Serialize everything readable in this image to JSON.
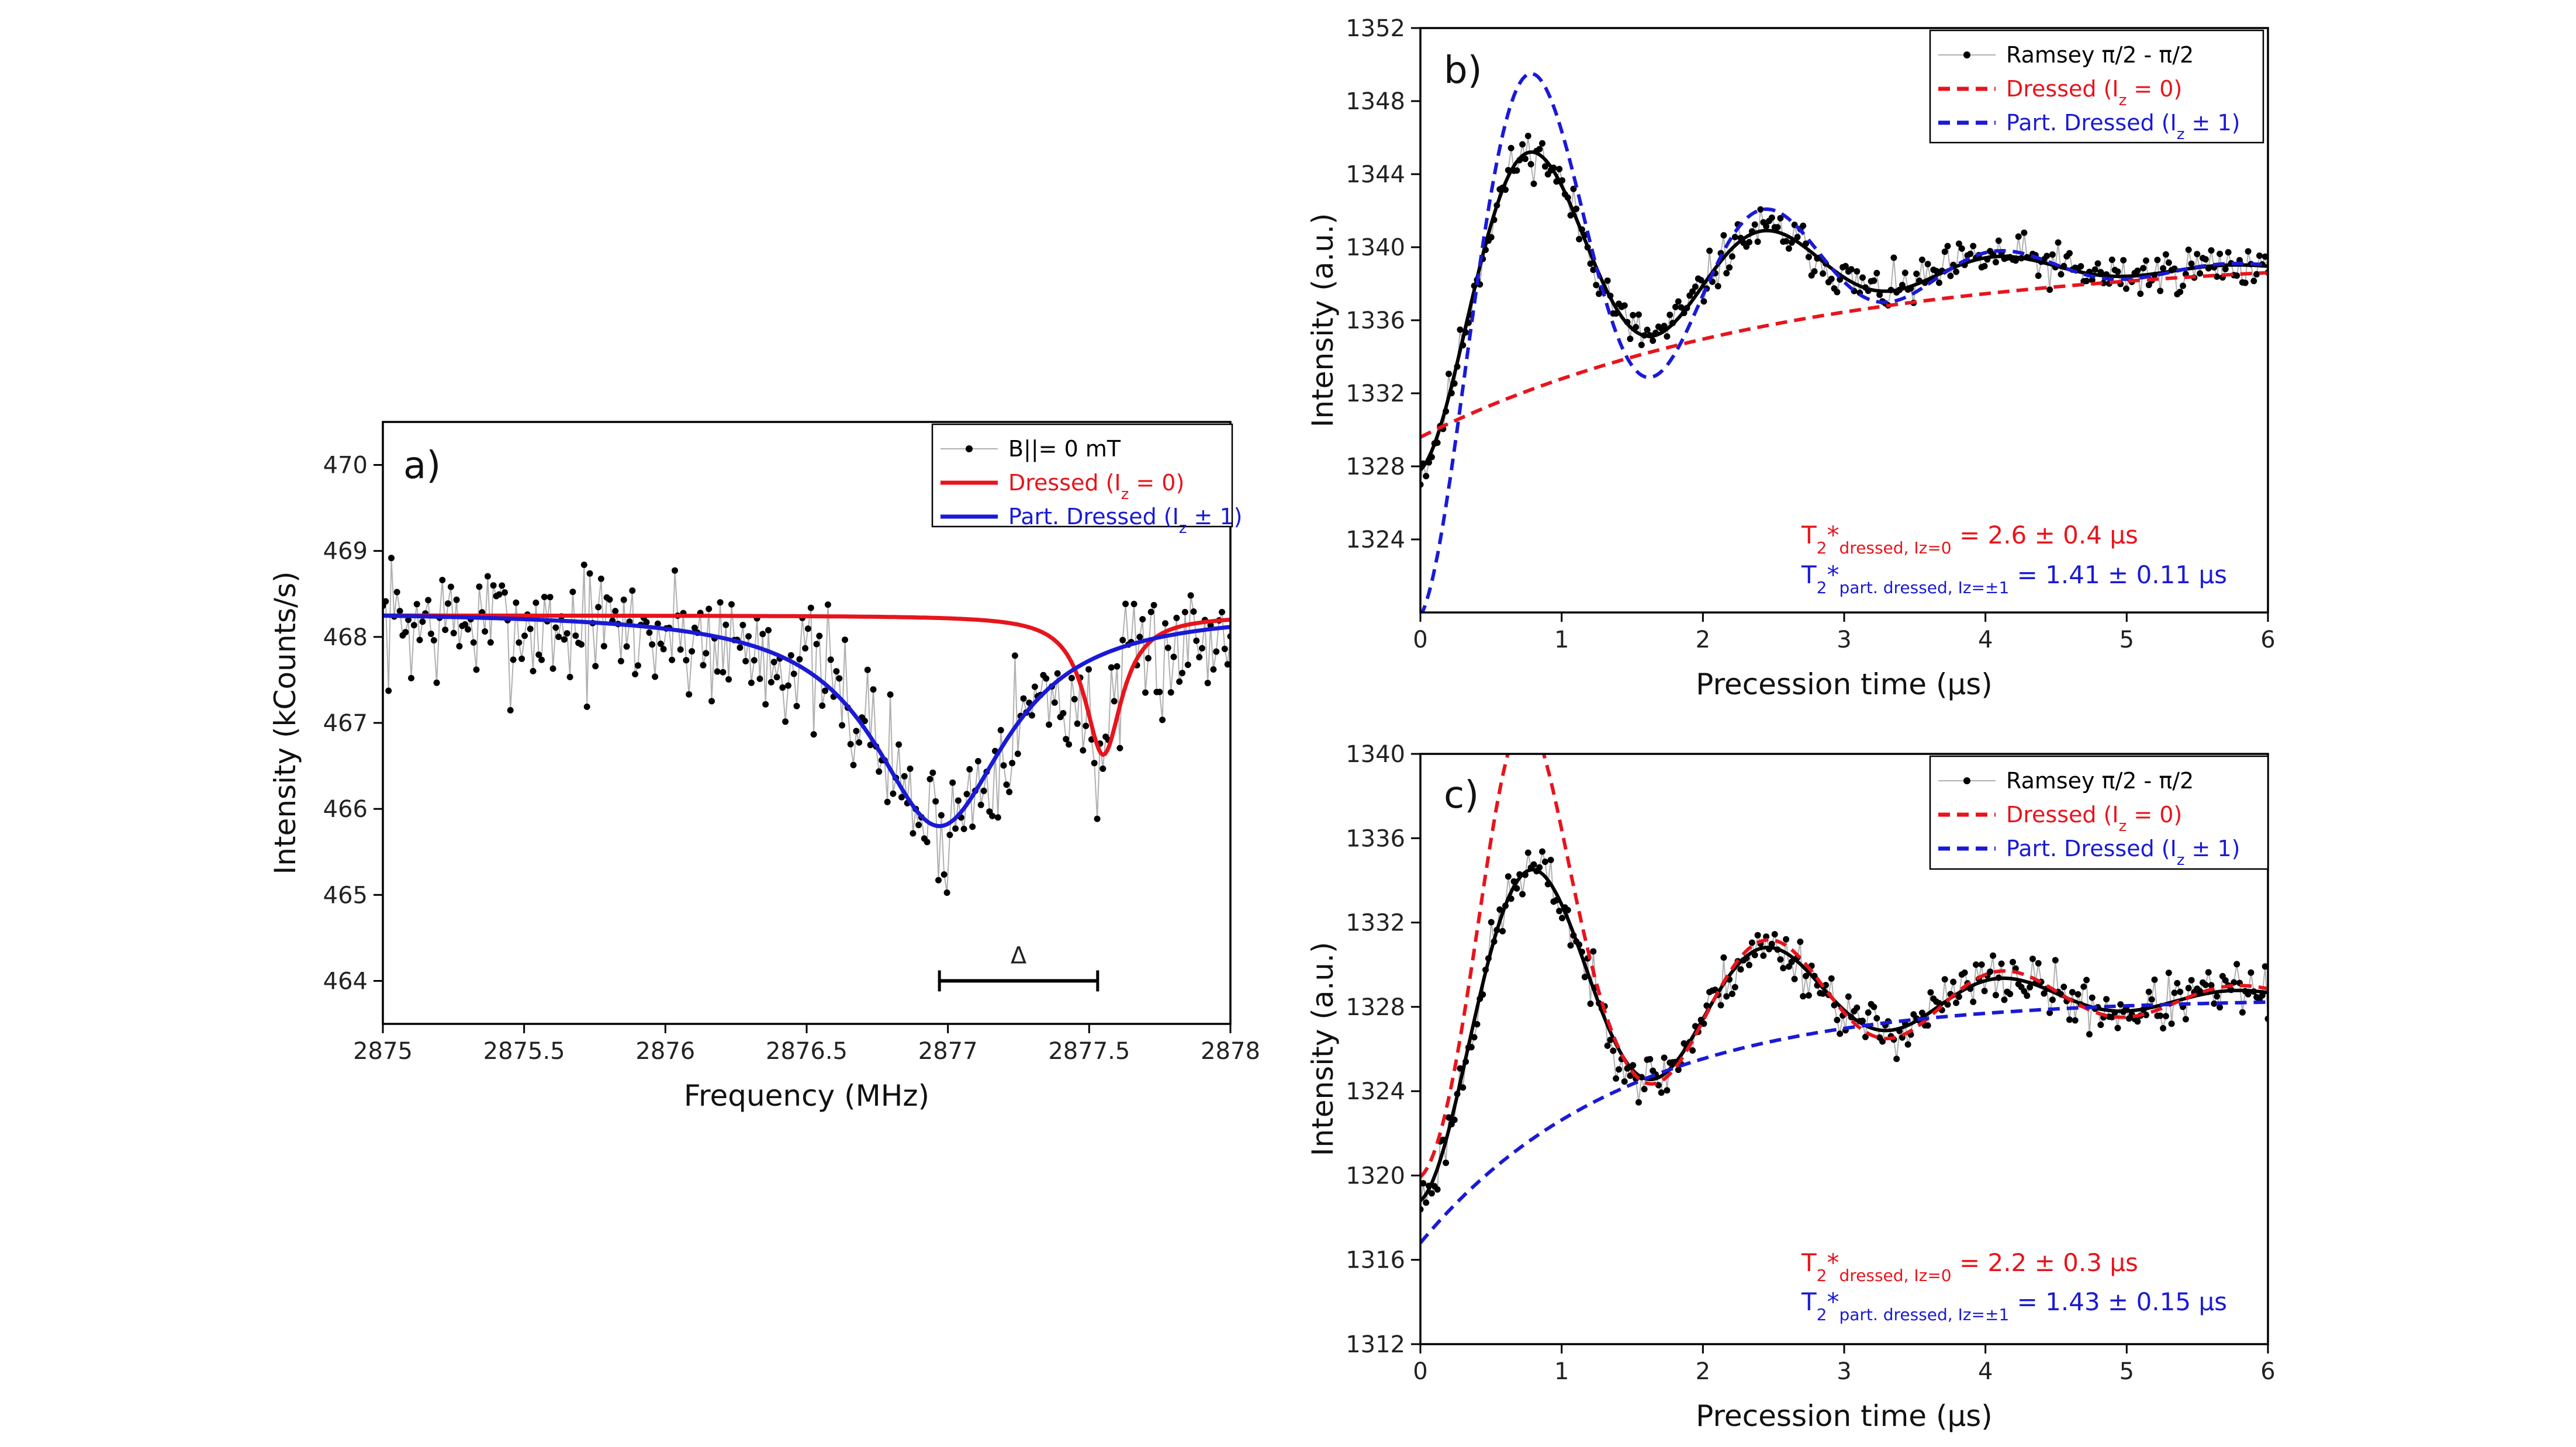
{
  "chart_data": [
    {
      "id": "a",
      "type": "line",
      "panel_label": "a)",
      "xlabel": "Frequency (MHz)",
      "ylabel": "Intensity (kCounts/s)",
      "xlim": [
        2875,
        2878
      ],
      "ylim": [
        463.5,
        470.5
      ],
      "xticks": [
        2875,
        2875.5,
        2876,
        2876.5,
        2877,
        2877.5,
        2878
      ],
      "xtick_labels": [
        "2875",
        "2875.5",
        "2876",
        "2876.5",
        "2877",
        "2877.5",
        "2878"
      ],
      "yticks": [
        464,
        465,
        466,
        467,
        468,
        469,
        470
      ],
      "ytick_labels": [
        "464",
        "465",
        "466",
        "467",
        "468",
        "469",
        "470"
      ],
      "legend": {
        "placement": "top-right",
        "entries": [
          {
            "label": "B||= 0 mT",
            "style": "points",
            "color": "#000000"
          },
          {
            "label": "Dressed (Iz = 0)",
            "html": "Dressed (I<tspan baseline-shift='sub' font-size='26'>z</tspan> = 0)",
            "style": "solid",
            "color": "#e8141c"
          },
          {
            "label": "Part. Dressed (Iz ± 1)",
            "html": "Part. Dressed (I<tspan baseline-shift='sub' font-size='26'>z</tspan> ± 1)",
            "style": "solid",
            "color": "#1a1ad6"
          }
        ]
      },
      "annotation_delta": {
        "label": "Δ",
        "x_from": 2876.97,
        "x_to": 2877.53,
        "y": 464.0
      },
      "series": [
        {
          "name": "B||= 0 mT",
          "kind": "noisy_points",
          "color": "#000000",
          "line_color": "#b0b0b0",
          "x_range": [
            2875,
            2878
          ],
          "n": 300,
          "noise": 0.55,
          "seed": 7,
          "model": {
            "baseline": 468.2,
            "dips": [
              {
                "center": 2876.97,
                "depth": 2.4,
                "width": 0.26
              },
              {
                "center": 2877.54,
                "depth": 1.1,
                "width": 0.07
              }
            ]
          }
        },
        {
          "name": "Dressed (Iz = 0)",
          "kind": "curve",
          "color": "#e8141c",
          "width": 7,
          "x_range": [
            2875,
            2878
          ],
          "n": 400,
          "model": {
            "baseline": 468.25,
            "dips": [
              {
                "center": 2877.55,
                "depth": 1.62,
                "width": 0.08
              }
            ]
          }
        },
        {
          "name": "Part. Dressed (Iz ± 1)",
          "kind": "curve",
          "color": "#1a1ad6",
          "width": 7,
          "x_range": [
            2875,
            2878
          ],
          "n": 400,
          "model": {
            "baseline": 468.3,
            "dips": [
              {
                "center": 2876.97,
                "depth": 2.5,
                "width": 0.29
              }
            ]
          }
        }
      ]
    },
    {
      "id": "b",
      "type": "line",
      "panel_label": "b)",
      "xlabel": "Precession time (μs)",
      "ylabel": "Intensity (a.u.)",
      "xlim": [
        0,
        6
      ],
      "ylim": [
        1320,
        1352
      ],
      "xticks": [
        0,
        1,
        2,
        3,
        4,
        5,
        6
      ],
      "xtick_labels": [
        "0",
        "1",
        "2",
        "3",
        "4",
        "5",
        "6"
      ],
      "yticks": [
        1324,
        1328,
        1332,
        1336,
        1340,
        1344,
        1348,
        1352
      ],
      "ytick_labels": [
        "1324",
        "1328",
        "1332",
        "1336",
        "1340",
        "1344",
        "1348",
        "1352"
      ],
      "legend": {
        "placement": "top-right",
        "entries": [
          {
            "label": "Ramsey π/2 - π/2",
            "style": "points",
            "color": "#000000"
          },
          {
            "label": "Dressed (Iz = 0)",
            "html": "Dressed (I<tspan baseline-shift='sub' font-size='26'>z</tspan> = 0)",
            "style": "dashed",
            "color": "#e8141c"
          },
          {
            "label": "Part. Dressed (Iz ± 1)",
            "html": "Part. Dressed (I<tspan baseline-shift='sub' font-size='26'>z</tspan> ± 1)",
            "style": "dashed",
            "color": "#1a1ad6"
          }
        ]
      },
      "annotations": [
        {
          "label": "T2*dressed, Iz=0 = 2.6 ± 0.4 μs",
          "html": "T<tspan baseline-shift='sub' font-size='28'>2</tspan>*<tspan baseline-shift='sub' font-size='28'>dressed, Iz=0</tspan> = 2.6 ± 0.4 μs",
          "color": "#e8141c"
        },
        {
          "label": "T2*part. dressed, Iz=±1 = 1.41 ± 0.11 μs",
          "html": "T<tspan baseline-shift='sub' font-size='28'>2</tspan>*<tspan baseline-shift='sub' font-size='28'>part. dressed, Iz=±1</tspan> = 1.41 ± 0.11 μs",
          "color": "#1a1ad6"
        }
      ],
      "series": [
        {
          "name": "Ramsey π/2 - π/2",
          "kind": "noisy_points",
          "color": "#000000",
          "line_color": "#b0b0b0",
          "x_range": [
            0,
            6
          ],
          "n": 300,
          "noise": 0.9,
          "seed": 11,
          "model": {
            "offset": 1338.8,
            "amp": -11.0,
            "tau": 1.5,
            "freq": 0.6,
            "phase": 0,
            "exp_amp": 0,
            "exp_tau": 1
          }
        },
        {
          "name": "fit",
          "kind": "curve",
          "color": "#000000",
          "width": 6,
          "dash": "",
          "x_range": [
            0,
            6
          ],
          "n": 400,
          "model": {
            "offset": 1338.8,
            "amp": -11.0,
            "tau": 1.5,
            "freq": 0.6,
            "phase": 0,
            "exp_amp": 0,
            "exp_tau": 1
          }
        },
        {
          "name": "Part. Dressed (Iz ± 1)",
          "kind": "curve",
          "color": "#1a1ad6",
          "width": 6,
          "dash": "20,12",
          "x_range": [
            0,
            6
          ],
          "n": 400,
          "model": {
            "offset": 1338.8,
            "amp": -19.0,
            "tau": 1.41,
            "freq": 0.6,
            "phase": 0,
            "exp_amp": 0,
            "exp_tau": 1
          }
        },
        {
          "name": "Dressed (Iz = 0)",
          "kind": "curve",
          "color": "#e8141c",
          "width": 6,
          "dash": "20,12",
          "x_range": [
            0,
            6
          ],
          "n": 400,
          "model": {
            "offset": 1339.6,
            "amp": 0,
            "tau": 1,
            "freq": 0,
            "phase": 0,
            "exp_amp": -10.0,
            "exp_tau": 2.6
          }
        }
      ]
    },
    {
      "id": "c",
      "type": "line",
      "panel_label": "c)",
      "xlabel": "Precession time (μs)",
      "ylabel": "Intensity (a.u.)",
      "xlim": [
        0,
        6
      ],
      "ylim": [
        1312,
        1340
      ],
      "xticks": [
        0,
        1,
        2,
        3,
        4,
        5,
        6
      ],
      "xtick_labels": [
        "0",
        "1",
        "2",
        "3",
        "4",
        "5",
        "6"
      ],
      "yticks": [
        1312,
        1316,
        1320,
        1324,
        1328,
        1332,
        1336,
        1340
      ],
      "ytick_labels": [
        "1312",
        "1316",
        "1320",
        "1324",
        "1328",
        "1332",
        "1336",
        "1340"
      ],
      "legend": {
        "placement": "top-right",
        "entries": [
          {
            "label": "Ramsey π/2 - π/2",
            "style": "points",
            "color": "#000000"
          },
          {
            "label": "Dressed (Iz = 0)",
            "html": "Dressed (I<tspan baseline-shift='sub' font-size='26'>z</tspan> = 0)",
            "style": "dashed",
            "color": "#e8141c"
          },
          {
            "label": "Part. Dressed (Iz ± 1)",
            "html": "Part. Dressed (I<tspan baseline-shift='sub' font-size='26'>z</tspan> ± 1)",
            "style": "dashed",
            "color": "#1a1ad6"
          }
        ]
      },
      "annotations": [
        {
          "label": "T2*dressed, Iz=0 = 2.2 ± 0.3 μs",
          "html": "T<tspan baseline-shift='sub' font-size='28'>2</tspan>*<tspan baseline-shift='sub' font-size='28'>dressed, Iz=0</tspan> = 2.2 ± 0.3 μs",
          "color": "#e8141c"
        },
        {
          "label": "T2*part. dressed, Iz=±1 = 1.43 ± 0.15 μs",
          "html": "T<tspan baseline-shift='sub' font-size='28'>2</tspan>*<tspan baseline-shift='sub' font-size='28'>part. dressed, Iz=±1</tspan> = 1.43 ± 0.15 μs",
          "color": "#1a1ad6"
        }
      ],
      "series": [
        {
          "name": "Ramsey π/2 - π/2",
          "kind": "noisy_points",
          "color": "#000000",
          "line_color": "#b0b0b0",
          "x_range": [
            0,
            6
          ],
          "n": 300,
          "noise": 0.9,
          "seed": 23,
          "model": {
            "offset": 1328.4,
            "amp": -9.6,
            "tau": 1.8,
            "freq": 0.6,
            "phase": 0,
            "exp_amp": 0,
            "exp_tau": 1
          }
        },
        {
          "name": "fit",
          "kind": "curve",
          "color": "#000000",
          "width": 6,
          "dash": "",
          "x_range": [
            0,
            6
          ],
          "n": 400,
          "model": {
            "offset": 1328.4,
            "amp": -9.6,
            "tau": 1.8,
            "freq": 0.6,
            "phase": 0,
            "exp_amp": 0,
            "exp_tau": 1
          }
        },
        {
          "name": "Dressed (Iz = 0)",
          "kind": "curve",
          "color": "#e8141c",
          "width": 6,
          "dash": "20,12",
          "x_range": [
            0,
            6
          ],
          "n": 400,
          "model": {
            "offset": 1328.4,
            "amp": -8.6,
            "tau": 2.2,
            "freq": 0.6,
            "phase": 0,
            "exp_amp": 0,
            "exp_tau": 1,
            "gauss_peak": {
              "x": 0.7,
              "amp": 7.5,
              "w": 0.35
            }
          }
        },
        {
          "name": "Part. Dressed (Iz ± 1)",
          "kind": "curve",
          "color": "#1a1ad6",
          "width": 6,
          "dash": "20,12",
          "x_range": [
            0,
            6
          ],
          "n": 400,
          "model": {
            "offset": 1328.4,
            "amp": 0,
            "tau": 1,
            "freq": 0,
            "phase": 0,
            "exp_amp": -11.6,
            "exp_tau": 1.43
          }
        }
      ]
    }
  ]
}
